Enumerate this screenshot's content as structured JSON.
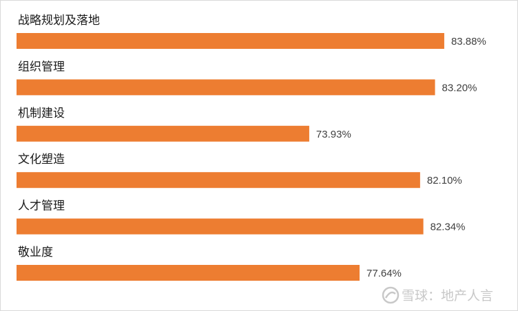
{
  "chart_data": {
    "type": "bar",
    "orientation": "horizontal",
    "categories": [
      "战略规划及落地",
      "组织管理",
      "机制建设",
      "文化塑造",
      "人才管理",
      "敬业度"
    ],
    "values": [
      83.88,
      83.2,
      73.93,
      82.1,
      82.34,
      77.64
    ],
    "value_labels": [
      "83.88%",
      "83.20%",
      "73.93%",
      "82.10%",
      "82.34%",
      "77.64%"
    ],
    "unit": "%",
    "title": "",
    "xlabel": "",
    "ylabel": "",
    "grid": false,
    "legend": "none",
    "bar_color": "#ed7d31"
  },
  "watermark": {
    "text": "雪球：地产人言",
    "icon": "snowball-logo-icon"
  }
}
